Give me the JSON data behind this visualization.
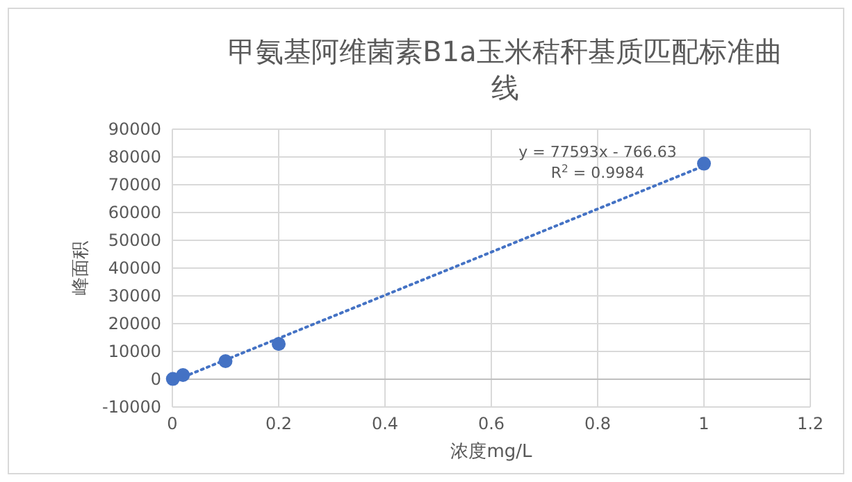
{
  "chart_data": {
    "type": "scatter",
    "title": "甲氨基阿维菌素B1a玉米秸秆基质匹配标准曲线",
    "xlabel": "浓度mg/L",
    "ylabel": "峰面积",
    "x": [
      0.001,
      0.02,
      0.1,
      0.2,
      1
    ],
    "series": [
      {
        "color": "#4472c4",
        "values": [
          100,
          1500,
          6500,
          12700,
          77600
        ],
        "marker": "circle"
      },
      {
        "type": "line",
        "color": "#4472c4",
        "x": [
          0,
          1
        ],
        "values": [
          -800,
          76800
        ],
        "line_style": "dotted",
        "marker": "none"
      }
    ],
    "xlim": [
      0,
      1.2
    ],
    "xticks": [
      0,
      0.2,
      0.4,
      0.6,
      0.8,
      1,
      1.2
    ],
    "ylim": [
      -10000,
      90000
    ],
    "yticks": [
      -10000,
      0,
      10000,
      20000,
      30000,
      40000,
      50000,
      60000,
      70000,
      80000,
      90000
    ],
    "grid": true,
    "annotations": [
      "y = 77593x - 766.63",
      "R$^{2}$ = 0.9984"
    ]
  }
}
